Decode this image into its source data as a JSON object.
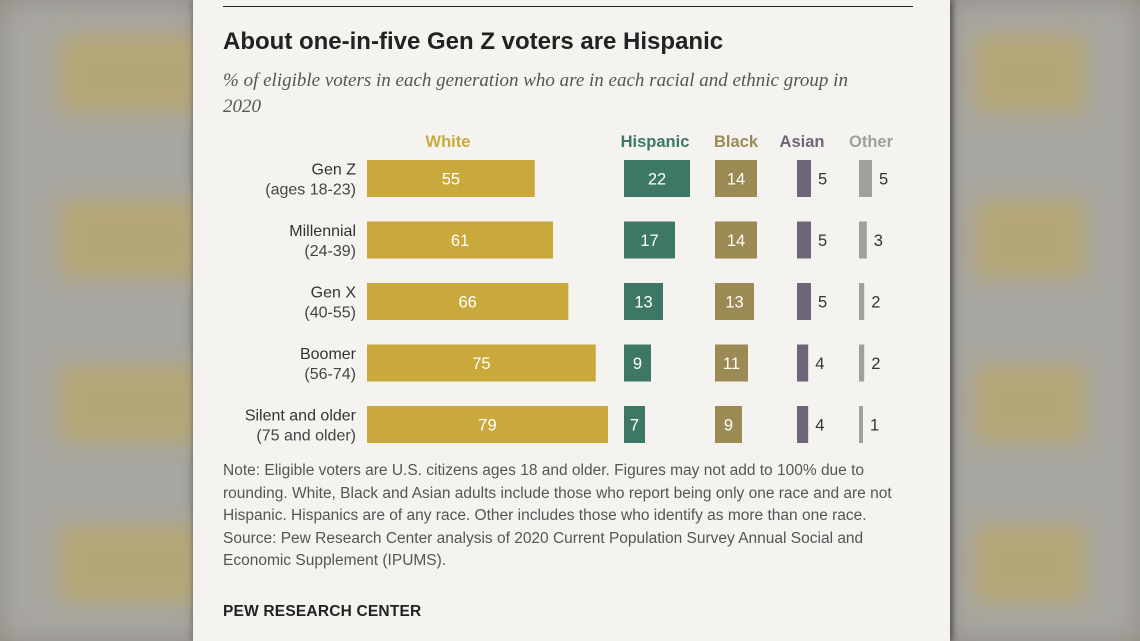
{
  "title": "About one-in-five Gen Z voters are Hispanic",
  "subtitle": "% of eligible voters in each generation who are in each racial and ethnic group in 2020",
  "note": "Note: Eligible voters are U.S. citizens ages 18 and older. Figures may not add to 100% due to rounding. White, Black and Asian adults include those who report being only one race and are not Hispanic. Hispanics are of any race. Other includes those who identify as more than one race.",
  "source": "Source: Pew Research Center analysis of 2020 Current Population Survey Annual Social and Economic Supplement (IPUMS).",
  "footer": "PEW RESEARCH CENTER",
  "colors": {
    "White": "#c9a93c",
    "Hispanic": "#3d7866",
    "Black": "#9c8a55",
    "Asian": "#6e6678",
    "Other": "#a09f9c"
  },
  "chart_data": {
    "type": "bar",
    "categories": [
      [
        "Gen Z",
        "(ages 18-23)"
      ],
      [
        "Millennial",
        "(24-39)"
      ],
      [
        "Gen X",
        "(40-55)"
      ],
      [
        "Boomer",
        "(56-74)"
      ],
      [
        "Silent and older",
        "(75 and older)"
      ]
    ],
    "series": [
      {
        "name": "White",
        "values": [
          55,
          61,
          66,
          75,
          79
        ]
      },
      {
        "name": "Hispanic",
        "values": [
          22,
          17,
          13,
          9,
          7
        ]
      },
      {
        "name": "Black",
        "values": [
          14,
          14,
          13,
          11,
          9
        ]
      },
      {
        "name": "Asian",
        "values": [
          5,
          5,
          5,
          4,
          4
        ]
      },
      {
        "name": "Other",
        "values": [
          5,
          3,
          2,
          2,
          1
        ]
      }
    ]
  }
}
